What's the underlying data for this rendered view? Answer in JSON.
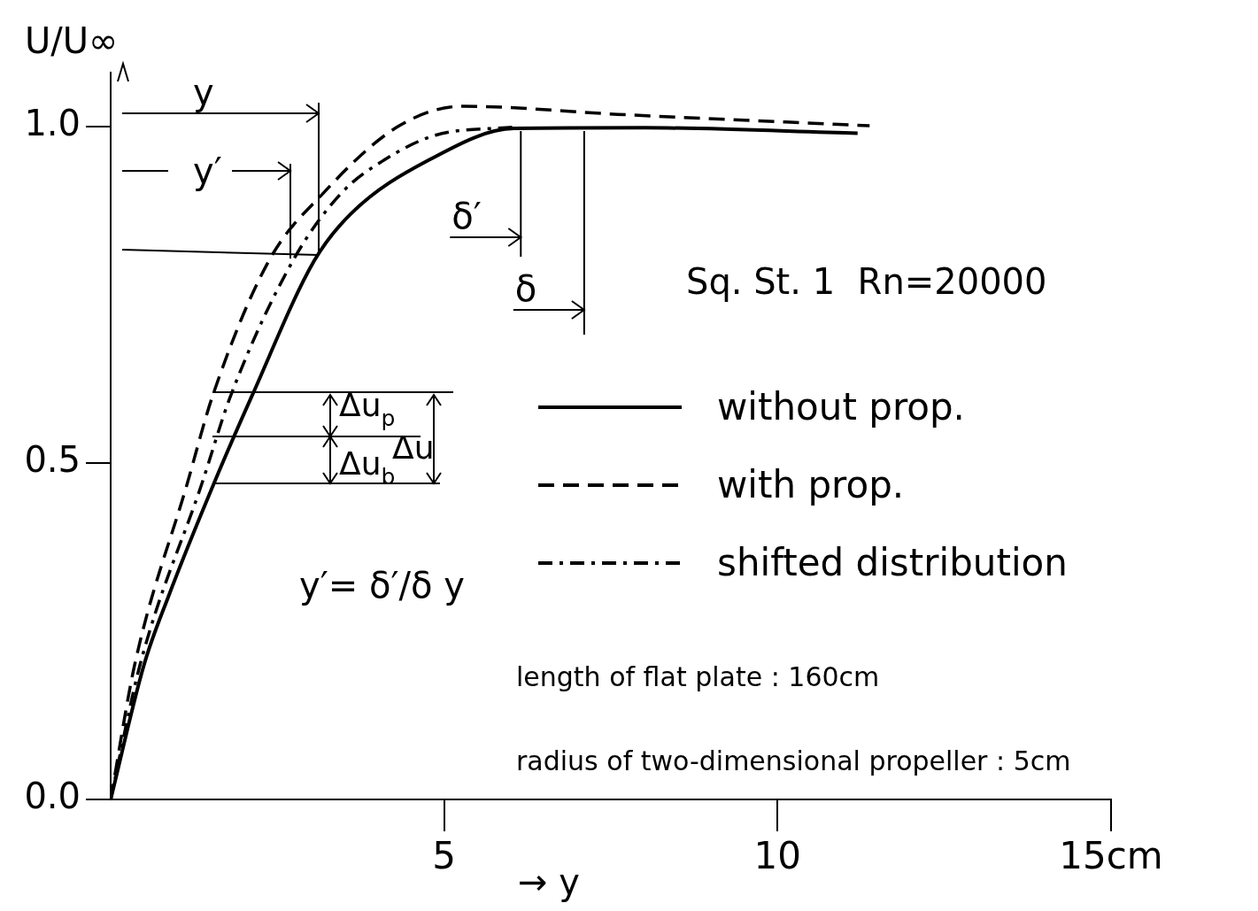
{
  "chart_data": {
    "type": "line",
    "xlabel": "→ y",
    "ylabel": "U/U∞",
    "xlim": [
      0,
      15
    ],
    "xticks": [
      5,
      10,
      {
        "value": 15,
        "label": "15cm"
      }
    ],
    "ylim": [
      0,
      1.08
    ],
    "yticks": [
      {
        "value": 0,
        "label": "0.0"
      },
      {
        "value": 0.5,
        "label": "0.5"
      },
      {
        "value": 1,
        "label": "1.0"
      }
    ],
    "legend": "right",
    "marker": "none",
    "series": [
      {
        "name": "without prop.",
        "color": "#000000",
        "line_style": "solid",
        "x": [
          0,
          0.5,
          0.86,
          1.55,
          2.12,
          3.05,
          3.6,
          4.77,
          6.05,
          8,
          11.2
        ],
        "values": [
          0,
          0.2,
          0.3,
          0.47,
          0.6,
          0.8,
          0.87,
          0.95,
          0.997,
          0.998,
          0.99
        ]
      },
      {
        "name": "with prop.",
        "color": "#000000",
        "line_style": "dashed",
        "x": [
          0,
          0.36,
          1.15,
          1.53,
          2.37,
          3.18,
          4.31,
          5.28,
          7.6,
          11.38
        ],
        "values": [
          0,
          0.2,
          0.47,
          0.6,
          0.8,
          0.9,
          1.0,
          1.03,
          1.018,
          1.001
        ]
      },
      {
        "name": "shifted distribution",
        "color": "#000000",
        "line_style": "dashdot",
        "x": [
          0,
          0.44,
          1.37,
          1.8,
          2.73,
          3.45,
          4.1,
          4.87,
          6.05
        ],
        "values": [
          0,
          0.2,
          0.47,
          0.6,
          0.8,
          0.9,
          0.95,
          0.987,
          0.999
        ]
      }
    ],
    "ref_lines": [
      {
        "axis": "x",
        "value": 6.15,
        "label": "δ′"
      },
      {
        "axis": "x",
        "value": 7.1,
        "label": "δ"
      }
    ],
    "annotations": [
      "y",
      "y′",
      "Δu$_{p}$",
      "Δu$_{b}$",
      "Δu",
      "Sq. St. 1  Rn=20000",
      "y′= δ′/δ y",
      "length of flat plate : 160cm",
      "radius of two-dimensional propeller : 5cm"
    ]
  }
}
